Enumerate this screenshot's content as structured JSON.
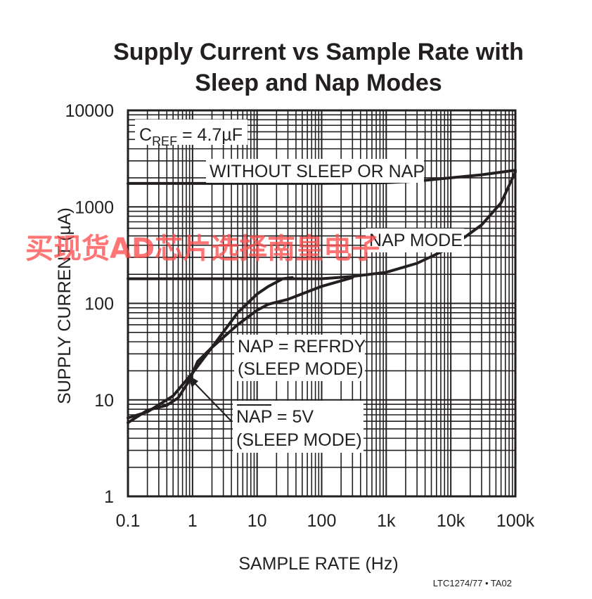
{
  "chart_data": {
    "type": "line",
    "title_line1": "Supply Current vs Sample Rate with",
    "title_line2": "Sleep and Nap Modes",
    "xlabel": "SAMPLE RATE (Hz)",
    "ylabel": "SUPPLY CURRENT (µA)",
    "xscale": "log",
    "yscale": "log",
    "xlim": [
      0.1,
      100000
    ],
    "ylim": [
      1,
      10000
    ],
    "grid": true,
    "x_ticks": [
      {
        "value": 0.1,
        "label": "0.1"
      },
      {
        "value": 1,
        "label": "1"
      },
      {
        "value": 10,
        "label": "10"
      },
      {
        "value": 100,
        "label": "100"
      },
      {
        "value": 1000,
        "label": "1k"
      },
      {
        "value": 10000,
        "label": "10k"
      },
      {
        "value": 100000,
        "label": "100k"
      }
    ],
    "y_ticks": [
      {
        "value": 1,
        "label": "1"
      },
      {
        "value": 10,
        "label": "10"
      },
      {
        "value": 100,
        "label": "100"
      },
      {
        "value": 1000,
        "label": "1000"
      },
      {
        "value": 10000,
        "label": "10000"
      }
    ],
    "series": [
      {
        "x": [
          0.1,
          1,
          10,
          100,
          1000,
          3000,
          10000,
          30000,
          100000
        ],
        "y": [
          1750,
          1750,
          1750,
          1750,
          1780,
          1850,
          2000,
          2150,
          2400
        ]
      },
      {
        "x": [
          0.1,
          1,
          10,
          30,
          100,
          300,
          1000,
          3000,
          10000,
          30000,
          60000,
          100000
        ],
        "y": [
          180,
          180,
          180,
          180,
          180,
          190,
          210,
          260,
          380,
          650,
          1100,
          2300
        ]
      },
      {
        "x": [
          0.1,
          0.2,
          0.5,
          1,
          2,
          5,
          10,
          15,
          25,
          35
        ],
        "y": [
          6.5,
          7.5,
          11,
          19,
          35,
          80,
          125,
          150,
          180,
          185
        ]
      },
      {
        "x": [
          0.1,
          0.2,
          0.4,
          0.6,
          0.9,
          1.2,
          2,
          5,
          10,
          15,
          30,
          100,
          300
        ],
        "y": [
          5.8,
          7.8,
          8.8,
          10.5,
          16,
          25,
          35,
          60,
          85,
          98,
          110,
          150,
          185
        ]
      }
    ],
    "annotations": {
      "cref_main": "C",
      "cref_sub": "REF",
      "cref_value": " = 4.7µF",
      "without": "WITHOUT SLEEP OR NAP",
      "nap_mode": "NAP MODE",
      "refrdy_line1": "NAP = REFRDY",
      "refrdy_line2": "(SLEEP MODE)",
      "nap5v_nap": "NAP",
      "nap5v_rest": " = 5V",
      "nap5v_line2": "(SLEEP MODE)"
    },
    "footer": "LTC1274/77 • TA02",
    "watermark": "买现货AD芯片选择南皇电子"
  }
}
